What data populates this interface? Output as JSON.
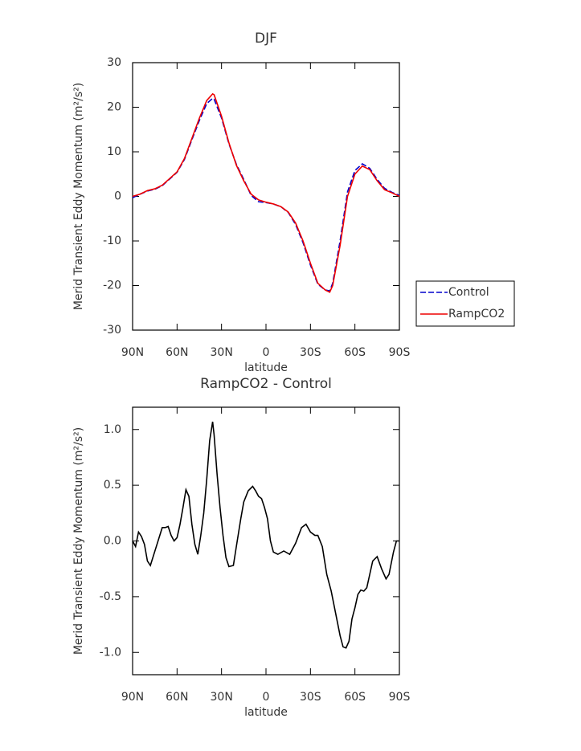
{
  "chart_data": [
    {
      "type": "line",
      "title": "DJF",
      "xlabel": "latitude",
      "ylabel": "Merid Transient Eddy Momentum (m²/s²)",
      "x": [
        90,
        85,
        80,
        75,
        70,
        65,
        60,
        55,
        50,
        45,
        40,
        36,
        35,
        30,
        25,
        20,
        15,
        10,
        5,
        0,
        -5,
        -10,
        -15,
        -20,
        -25,
        -30,
        -35,
        -40,
        -43,
        -45,
        -50,
        -55,
        -60,
        -65,
        -70,
        -75,
        -80,
        -85,
        -90
      ],
      "series": [
        {
          "name": "Control",
          "color": "#0000cc",
          "dash": true,
          "values": [
            -0.3,
            0.5,
            1.2,
            1.6,
            2.4,
            3.9,
            5.4,
            8.3,
            12.7,
            17,
            20.8,
            22,
            21.8,
            17.6,
            11.8,
            7.2,
            3.8,
            0.2,
            -1.2,
            -1.4,
            -1.7,
            -2.3,
            -3.6,
            -6.3,
            -10.4,
            -15.4,
            -19.7,
            -21,
            -21.2,
            -19.5,
            -10,
            1,
            5.8,
            7.3,
            6.3,
            3.8,
            1.8,
            0.9,
            0.2
          ]
        },
        {
          "name": "RampCO2",
          "color": "#ee0000",
          "values": [
            0,
            0.5,
            1.3,
            1.7,
            2.5,
            4,
            5.5,
            8.5,
            13,
            17.5,
            21.5,
            23,
            22.8,
            18,
            12,
            7,
            3.5,
            0.5,
            -0.8,
            -1.3,
            -1.7,
            -2.3,
            -3.5,
            -6,
            -10,
            -15,
            -19.5,
            -21,
            -21.5,
            -20,
            -11,
            0,
            5,
            6.8,
            6,
            3.5,
            1.5,
            0.8,
            0
          ]
        }
      ],
      "xlim": [
        90,
        -90
      ],
      "xticks": [
        {
          "value": 90,
          "label": "90N"
        },
        {
          "value": 60,
          "label": "60N"
        },
        {
          "value": 30,
          "label": "30N"
        },
        0,
        {
          "value": -30,
          "label": "30S"
        },
        {
          "value": -60,
          "label": "60S"
        },
        {
          "value": -90,
          "label": "90S"
        }
      ],
      "ylim": [
        -30,
        30
      ],
      "yticks": [
        -30,
        -20,
        -10,
        0,
        10,
        20,
        30
      ],
      "legend": "right"
    },
    {
      "type": "line",
      "title": "RampCO2 - Control",
      "xlabel": "latitude",
      "ylabel": "Merid Transient Eddy Momentum (m²/s²)",
      "x": [
        90,
        88,
        86,
        84,
        82,
        80,
        78,
        74,
        70,
        68,
        66,
        64,
        62,
        60,
        58,
        56,
        54,
        52,
        50,
        48,
        46,
        44,
        42,
        40,
        38,
        36,
        35,
        33,
        31,
        29,
        27,
        25,
        22,
        20,
        17,
        15,
        12,
        9,
        7,
        5,
        3,
        1,
        -1,
        -3,
        -5,
        -8,
        -12,
        -16,
        -20,
        -24,
        -27,
        -30,
        -33,
        -35,
        -38,
        -41,
        -44,
        -47,
        -50,
        -52,
        -54,
        -56,
        -58,
        -60,
        -62,
        -64,
        -66,
        -68,
        -70,
        -72,
        -75,
        -78,
        -81,
        -83,
        -86,
        -88,
        -90
      ],
      "values": [
        0,
        -0.05,
        0.08,
        0.04,
        -0.03,
        -0.18,
        -0.22,
        -0.05,
        0.12,
        0.12,
        0.13,
        0.05,
        0,
        0.03,
        0.15,
        0.3,
        0.46,
        0.4,
        0.15,
        -0.03,
        -0.12,
        0.05,
        0.25,
        0.55,
        0.9,
        1.07,
        0.95,
        0.6,
        0.3,
        0.05,
        -0.15,
        -0.23,
        -0.22,
        -0.05,
        0.2,
        0.35,
        0.45,
        0.49,
        0.45,
        0.4,
        0.38,
        0.3,
        0.2,
        0,
        -0.1,
        -0.12,
        -0.09,
        -0.12,
        -0.02,
        0.12,
        0.15,
        0.08,
        0.05,
        0.05,
        -0.05,
        -0.3,
        -0.45,
        -0.65,
        -0.85,
        -0.95,
        -0.96,
        -0.9,
        -0.7,
        -0.6,
        -0.48,
        -0.44,
        -0.45,
        -0.42,
        -0.3,
        -0.18,
        -0.14,
        -0.25,
        -0.34,
        -0.3,
        -0.1,
        0,
        0
      ],
      "color": "#000000",
      "xlim": [
        90,
        -90
      ],
      "xticks": [
        {
          "value": 90,
          "label": "90N"
        },
        {
          "value": 60,
          "label": "60N"
        },
        {
          "value": 30,
          "label": "30N"
        },
        0,
        {
          "value": -30,
          "label": "30S"
        },
        {
          "value": -60,
          "label": "60S"
        },
        {
          "value": -90,
          "label": "90S"
        }
      ],
      "ylim": [
        -1.2,
        1.2
      ],
      "yticks": [
        {
          "value": -1,
          "label": "-1.0"
        },
        {
          "value": -0.5,
          "label": "-0.5"
        },
        {
          "value": 0,
          "label": "0.0"
        },
        0.5,
        {
          "value": 1,
          "label": "1.0"
        }
      ]
    }
  ]
}
